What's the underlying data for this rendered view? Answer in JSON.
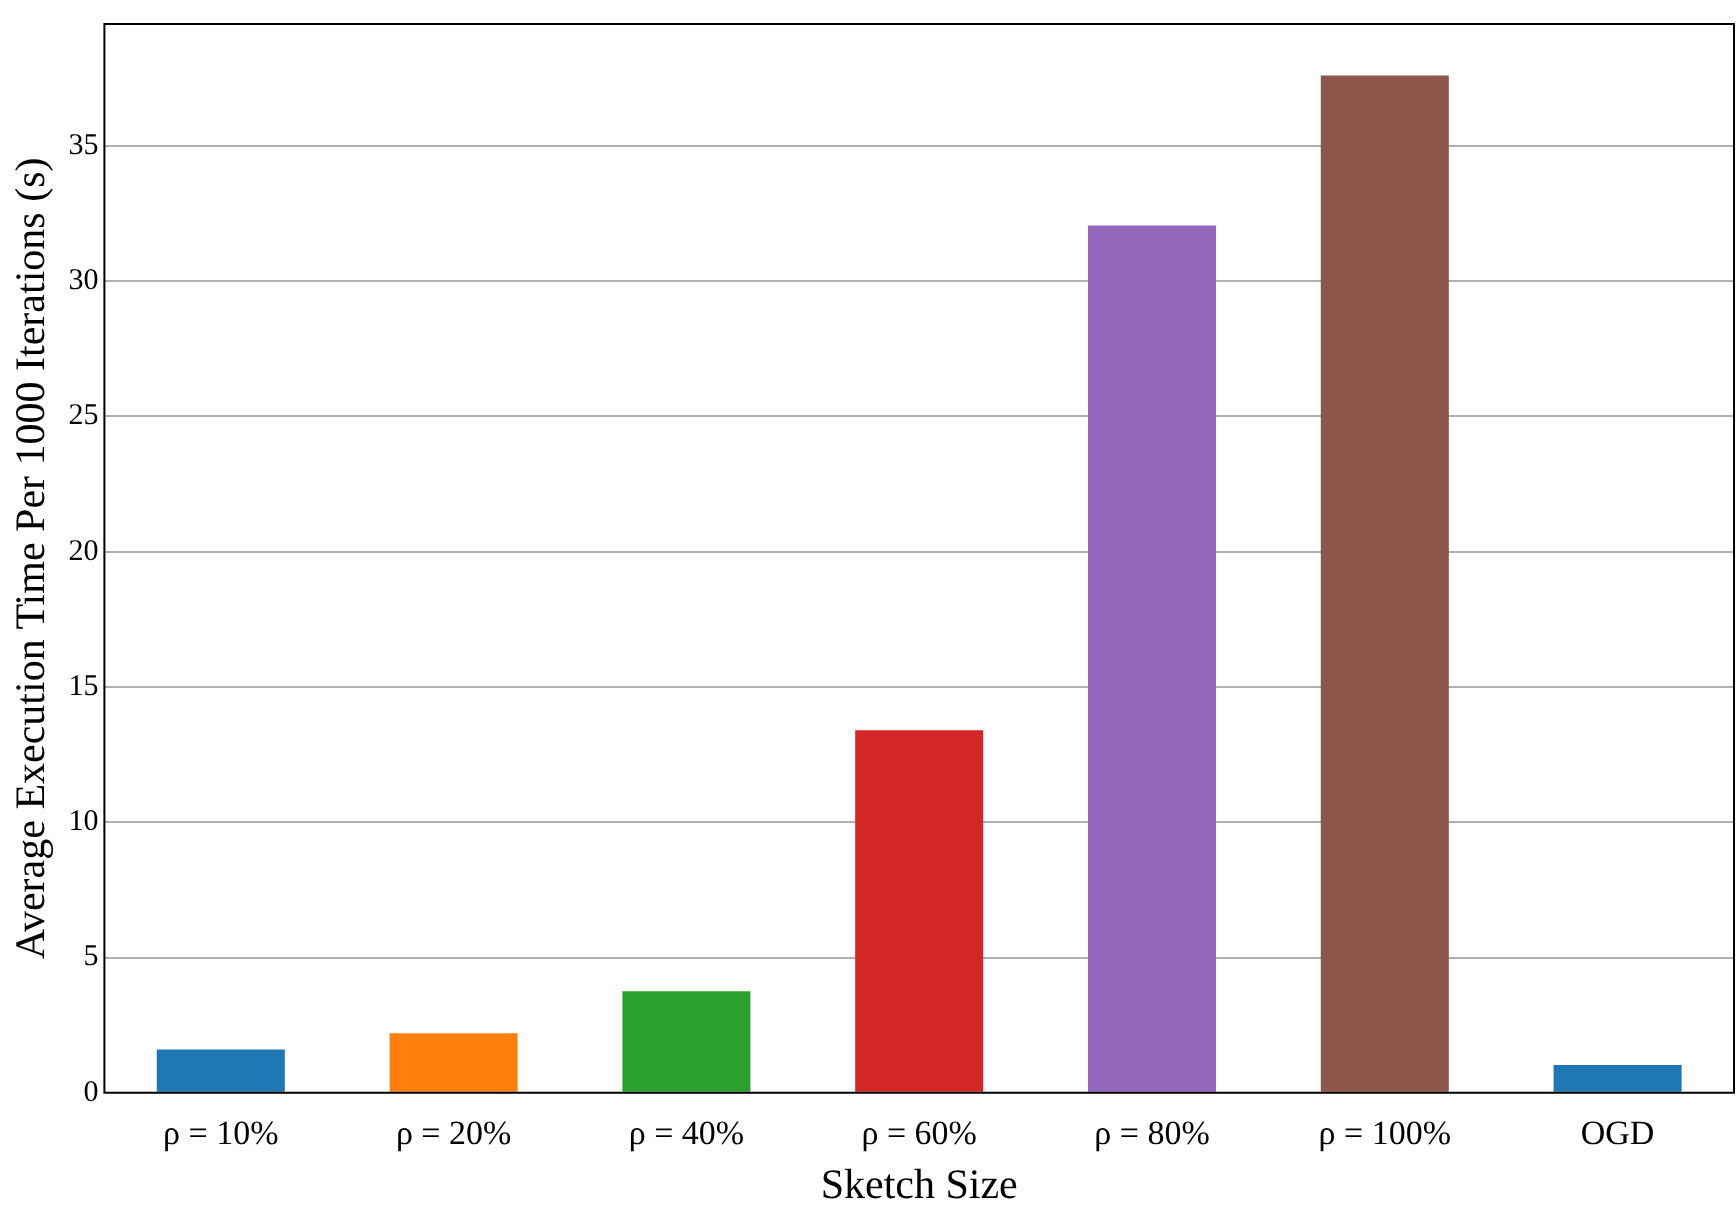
{
  "chart_data": {
    "type": "bar",
    "xlabel": "Sketch Size",
    "ylabel": "Average Execution Time Per 1000 Iterations (s)",
    "categories": [
      "ρ = 10%",
      "ρ = 20%",
      "ρ = 40%",
      "ρ = 60%",
      "ρ = 80%",
      "ρ = 100%",
      "OGD"
    ],
    "values": [
      1.6,
      2.2,
      3.75,
      13.4,
      32.05,
      37.6,
      1.03
    ],
    "colors": [
      "#1f77b4",
      "#ff7f0e",
      "#2ca02c",
      "#d62728",
      "#9467bd",
      "#8c564b",
      "#1f77b4"
    ],
    "ylim": [
      0,
      39.5
    ],
    "yticks": [
      0,
      5,
      10,
      15,
      20,
      25,
      30,
      35
    ],
    "grid": "y",
    "legend": false
  }
}
